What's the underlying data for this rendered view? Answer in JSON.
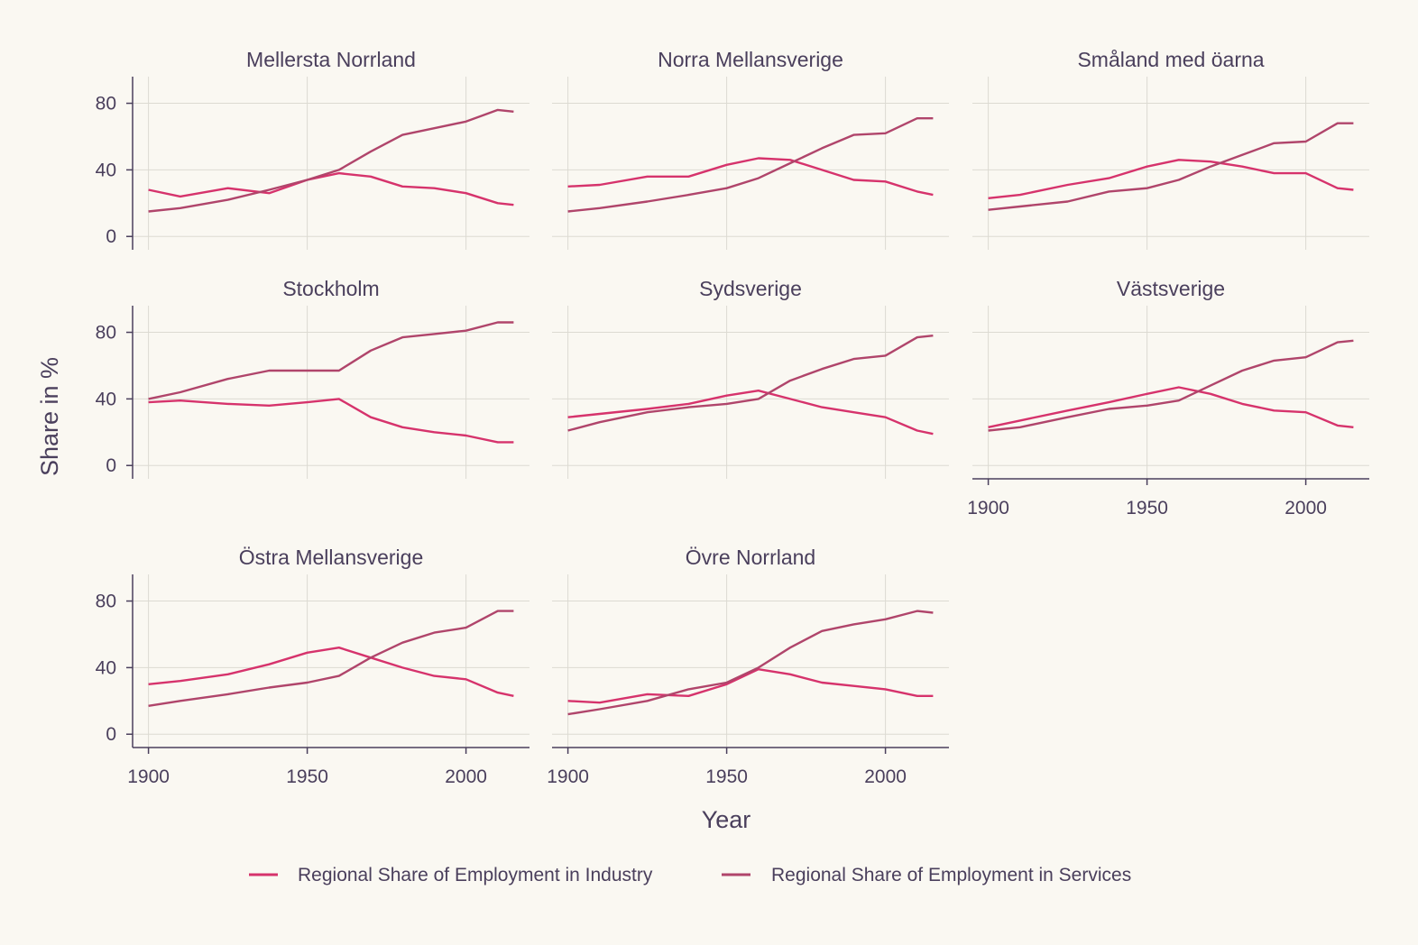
{
  "colors": {
    "background": "#faf8f2",
    "text": "#4a3f5c",
    "industry": "#d6336c",
    "services": "#b0456b",
    "grid": "#dcdad2"
  },
  "chart_data": {
    "type": "line",
    "layout": "facet-grid",
    "xlabel": "Year",
    "ylabel": "Share in %",
    "xlim": [
      1895,
      2020
    ],
    "ylim": [
      -8,
      96
    ],
    "xticks": [
      1900,
      1950,
      2000
    ],
    "yticks": [
      0,
      40,
      80
    ],
    "grid": true,
    "legend_position": "bottom",
    "years": [
      1900,
      1910,
      1925,
      1938,
      1950,
      1960,
      1970,
      1980,
      1990,
      2000,
      2010,
      2015
    ],
    "series_names": [
      "Regional Share of Employment in Industry",
      "Regional Share of Employment in Services"
    ],
    "panels": [
      {
        "title": "Mellersta Norrland",
        "industry": [
          28,
          24,
          29,
          26,
          34,
          38,
          36,
          30,
          29,
          26,
          20,
          19
        ],
        "services": [
          15,
          17,
          22,
          28,
          34,
          40,
          51,
          61,
          65,
          69,
          76,
          75
        ]
      },
      {
        "title": "Norra Mellansverige",
        "industry": [
          30,
          31,
          36,
          36,
          43,
          47,
          46,
          40,
          34,
          33,
          27,
          25
        ],
        "services": [
          15,
          17,
          21,
          25,
          29,
          35,
          44,
          53,
          61,
          62,
          71,
          71
        ]
      },
      {
        "title": "Småland med öarna",
        "industry": [
          23,
          25,
          31,
          35,
          42,
          46,
          45,
          42,
          38,
          38,
          29,
          28
        ],
        "services": [
          16,
          18,
          21,
          27,
          29,
          34,
          42,
          49,
          56,
          57,
          68,
          68
        ]
      },
      {
        "title": "Stockholm",
        "industry": [
          38,
          39,
          37,
          36,
          38,
          40,
          29,
          23,
          20,
          18,
          14,
          14
        ],
        "services": [
          40,
          44,
          52,
          57,
          57,
          57,
          69,
          77,
          79,
          81,
          86,
          86
        ]
      },
      {
        "title": "Sydsverige",
        "industry": [
          29,
          31,
          34,
          37,
          42,
          45,
          40,
          35,
          32,
          29,
          21,
          19
        ],
        "services": [
          21,
          26,
          32,
          35,
          37,
          40,
          51,
          58,
          64,
          66,
          77,
          78
        ]
      },
      {
        "title": "Västsverige",
        "industry": [
          23,
          27,
          33,
          38,
          43,
          47,
          43,
          37,
          33,
          32,
          24,
          23
        ],
        "services": [
          21,
          23,
          29,
          34,
          36,
          39,
          48,
          57,
          63,
          65,
          74,
          75
        ]
      },
      {
        "title": "Östra Mellansverige",
        "industry": [
          30,
          32,
          36,
          42,
          49,
          52,
          46,
          40,
          35,
          33,
          25,
          23
        ],
        "services": [
          17,
          20,
          24,
          28,
          31,
          35,
          46,
          55,
          61,
          64,
          74,
          74
        ]
      },
      {
        "title": "Övre Norrland",
        "industry": [
          20,
          19,
          24,
          23,
          30,
          39,
          36,
          31,
          29,
          27,
          23,
          23
        ],
        "services": [
          12,
          15,
          20,
          27,
          31,
          40,
          52,
          62,
          66,
          69,
          74,
          73
        ]
      }
    ]
  }
}
